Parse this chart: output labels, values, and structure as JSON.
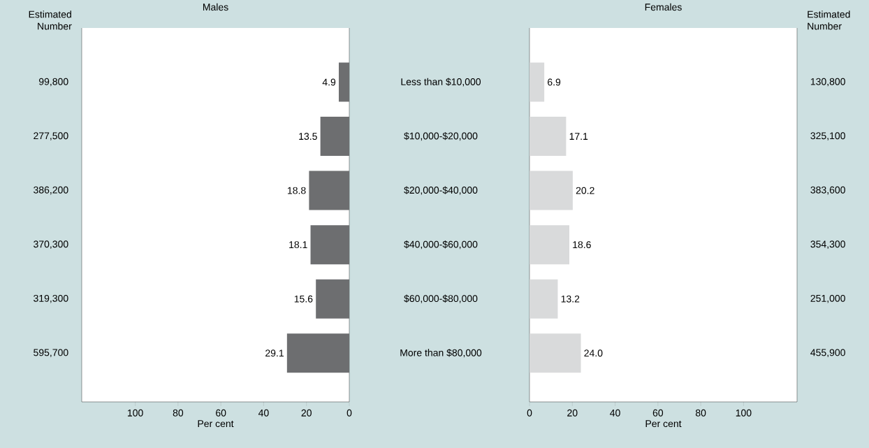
{
  "chart_data": [
    {
      "type": "bar",
      "orientation": "horizontal",
      "title": "Males",
      "xlabel": "Per cent",
      "ylabel": "Estimated Number",
      "categories": [
        "Less than $10,000",
        "$10,000-$20,000",
        "$20,000-$40,000",
        "$40,000-$60,000",
        "$60,000-$80,000",
        "More than $80,000"
      ],
      "values": [
        4.9,
        13.5,
        18.8,
        18.1,
        15.6,
        29.1
      ],
      "value_labels": [
        "4.9",
        "13.5",
        "18.8",
        "18.1",
        "15.6",
        "29.1"
      ],
      "color": "#6d6e70",
      "xlim": [
        125,
        0
      ],
      "xticks": [
        100,
        80,
        60,
        40,
        20,
        0
      ],
      "annotations": [
        "99,800",
        "277,500",
        "386,200",
        "370,300",
        "319,300",
        "595,700"
      ]
    },
    {
      "type": "bar",
      "orientation": "horizontal",
      "title": "Females",
      "xlabel": "Per cent",
      "y2label": "Estimated Number",
      "tick_labels": "x",
      "categories": [
        null,
        null,
        null,
        null,
        null,
        null
      ],
      "values": [
        6.9,
        17.1,
        20.2,
        18.6,
        13.2,
        24.0
      ],
      "value_labels": [
        "6.9",
        "17.1",
        "20.2",
        "18.6",
        "13.2",
        "24.0"
      ],
      "color": "#d9dadb",
      "xlim": [
        0,
        125
      ],
      "xticks": [
        0,
        20,
        40,
        60,
        80,
        100
      ],
      "annotations": [
        "130,800",
        "325,100",
        "383,600",
        "354,300",
        "251,000",
        "455,900"
      ]
    }
  ]
}
